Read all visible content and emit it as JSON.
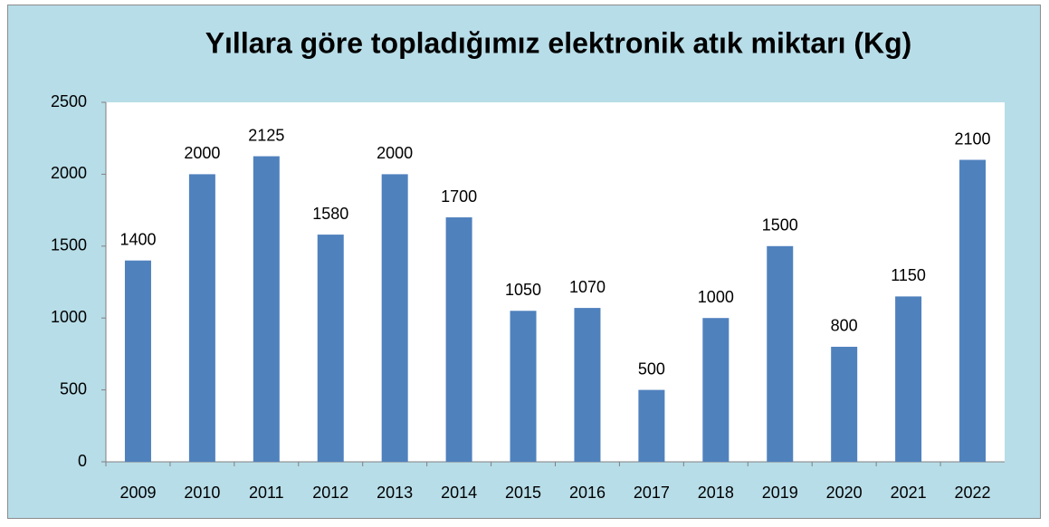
{
  "chart_data": {
    "type": "bar",
    "title": "Yıllara göre topladığımız elektronik atık miktarı (Kg)",
    "categories": [
      "2009",
      "2010",
      "2011",
      "2012",
      "2013",
      "2014",
      "2015",
      "2016",
      "2017",
      "2018",
      "2019",
      "2020",
      "2021",
      "2022"
    ],
    "values": [
      1400,
      2000,
      2125,
      1580,
      2000,
      1700,
      1050,
      1070,
      500,
      1000,
      1500,
      800,
      1150,
      2100
    ],
    "color": "#4f81bd",
    "ylim": [
      0,
      2500
    ],
    "yticks": [
      0,
      500,
      1000,
      1500,
      2000,
      2500
    ],
    "grid": false
  }
}
